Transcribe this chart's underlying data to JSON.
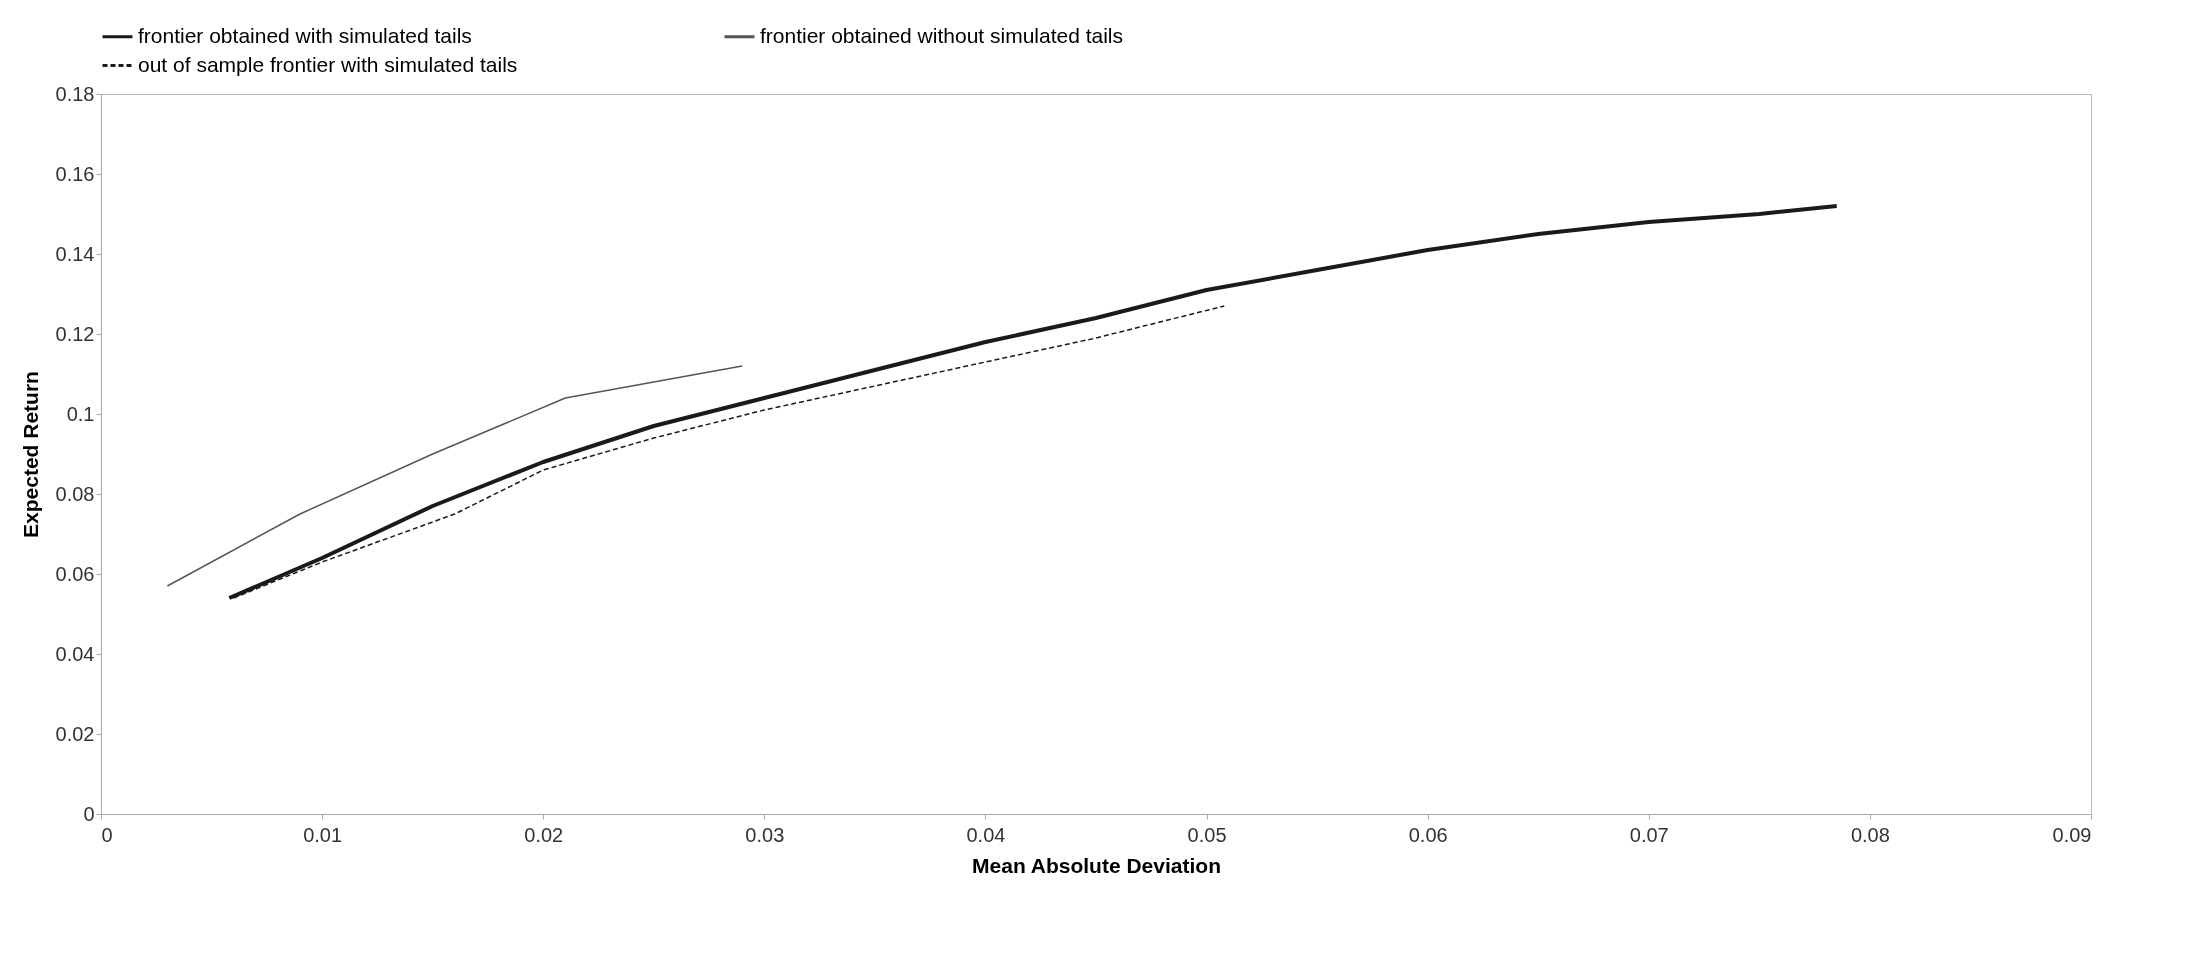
{
  "chart_data": {
    "type": "line",
    "xlabel": "Mean Absolute Deviation",
    "ylabel": "Expected Return",
    "xlim": [
      0,
      0.09
    ],
    "ylim": [
      0,
      0.18
    ],
    "xticks": [
      0,
      0.01,
      0.02,
      0.03,
      0.04,
      0.05,
      0.06,
      0.07,
      0.08,
      0.09
    ],
    "yticks": [
      0,
      0.02,
      0.04,
      0.06,
      0.08,
      0.1,
      0.12,
      0.14,
      0.16,
      0.18
    ],
    "grid": false,
    "legend": "top",
    "series": [
      {
        "name": "frontier obtained with simulated tails",
        "color": "#1a1a1a",
        "line_style": "solid",
        "x": [
          0.0058,
          0.01,
          0.015,
          0.02,
          0.025,
          0.03,
          0.035,
          0.04,
          0.045,
          0.05,
          0.055,
          0.06,
          0.065,
          0.07,
          0.075,
          0.0785
        ],
        "values": [
          0.054,
          0.064,
          0.077,
          0.088,
          0.097,
          0.104,
          0.111,
          0.118,
          0.124,
          0.131,
          0.136,
          0.141,
          0.145,
          0.148,
          0.15,
          0.152
        ]
      },
      {
        "name": "frontier obtained without simulated tails",
        "color": "#555555",
        "line_style": "solid",
        "x": [
          0.003,
          0.009,
          0.015,
          0.021,
          0.025,
          0.029
        ],
        "values": [
          0.057,
          0.075,
          0.09,
          0.104,
          0.108,
          0.112
        ]
      },
      {
        "name": "out of sample frontier with simulated tails",
        "color": "#1a1a1a",
        "line_style": "dashed",
        "x": [
          0.006,
          0.01,
          0.016,
          0.02,
          0.025,
          0.03,
          0.035,
          0.04,
          0.045,
          0.0508
        ],
        "values": [
          0.054,
          0.063,
          0.075,
          0.086,
          0.094,
          0.101,
          0.107,
          0.113,
          0.119,
          0.127
        ]
      }
    ]
  }
}
